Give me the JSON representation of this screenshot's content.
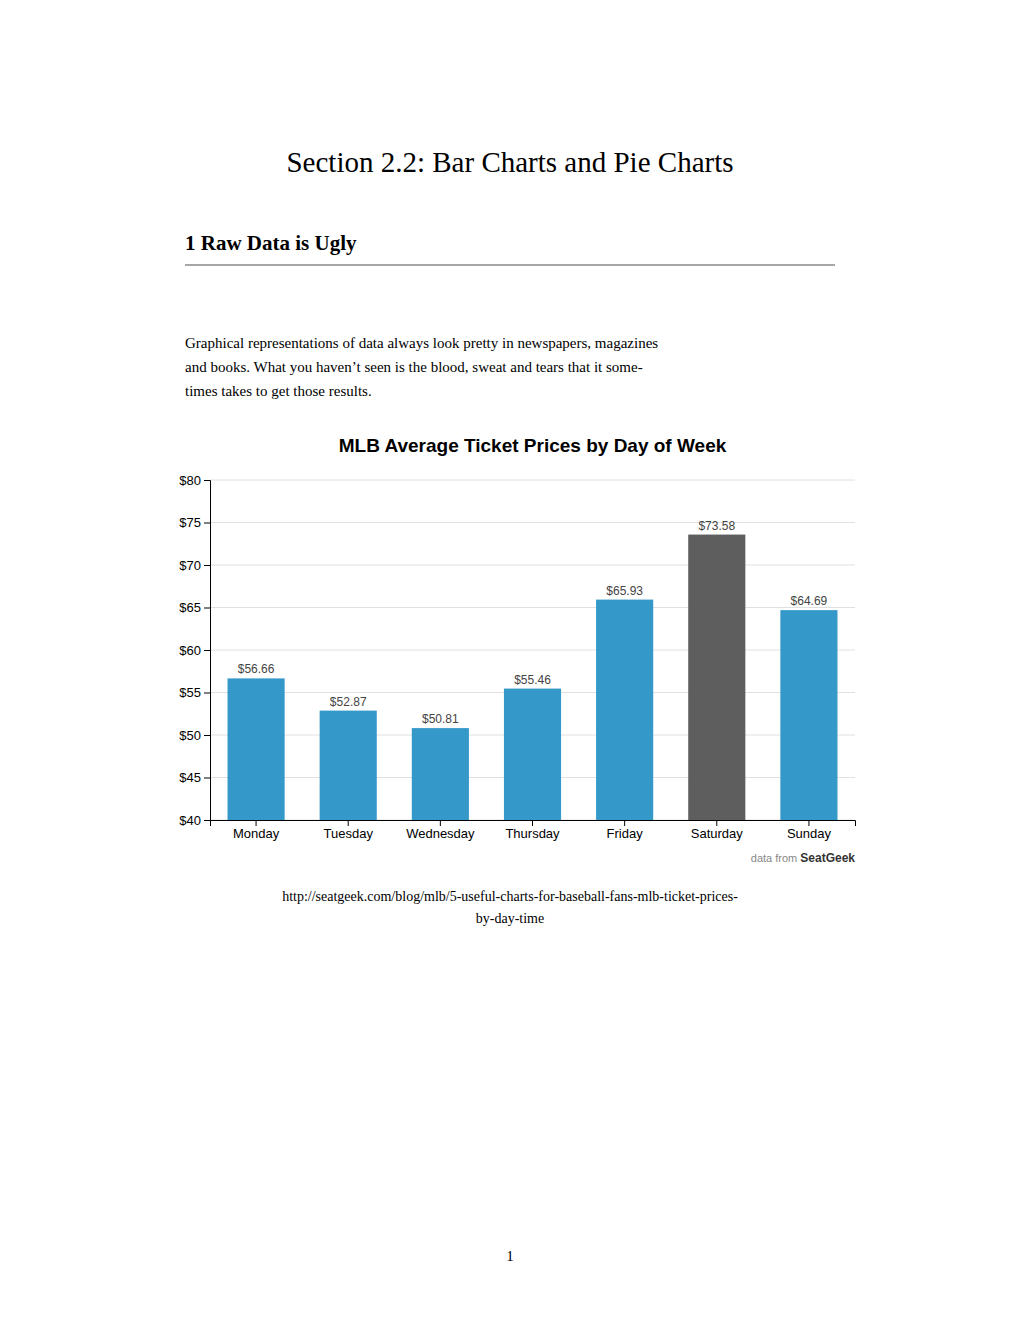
{
  "title": "Section 2.2:  Bar Charts and Pie Charts",
  "section_title": "1    Raw Data is Ugly",
  "body_text": "Graphical representations of data always look pretty in newspapers, magazines\nand books.  What you haven’t seen is the blood, sweat and tears that it some-\ntimes takes to get those results.",
  "source_prefix": "data from ",
  "source_name": "SeatGeek",
  "url_lines": [
    "http://seatgeek.com/blog/mlb/5-useful-charts-for-baseball-fans-mlb-ticket-prices-",
    "by-day-time"
  ],
  "page_number": "1",
  "chart_data": {
    "type": "bar",
    "title": "MLB Average Ticket Prices by Day of Week",
    "categories": [
      "Monday",
      "Tuesday",
      "Wednesday",
      "Thursday",
      "Friday",
      "Saturday",
      "Sunday"
    ],
    "values": [
      56.66,
      52.87,
      50.81,
      55.46,
      65.93,
      73.58,
      64.69
    ],
    "value_labels": [
      "$56.66",
      "$52.87",
      "$50.81",
      "$55.46",
      "$65.93",
      "$73.58",
      "$64.69"
    ],
    "data_labels": true,
    "colors": [
      "#3498c9",
      "#3498c9",
      "#3498c9",
      "#3498c9",
      "#3498c9",
      "#5e5e5e",
      "#3498c9"
    ],
    "ylim": [
      40,
      80
    ],
    "yticks": [
      {
        "value": 40,
        "label": "$40"
      },
      {
        "value": 45,
        "label": "$45"
      },
      {
        "value": 50,
        "label": "$50"
      },
      {
        "value": 55,
        "label": "$55"
      },
      {
        "value": 60,
        "label": "$60"
      },
      {
        "value": 65,
        "label": "$65"
      },
      {
        "value": 70,
        "label": "$70"
      },
      {
        "value": 75,
        "label": "$75"
      },
      {
        "value": 80,
        "label": "$80"
      }
    ],
    "grid": true
  }
}
